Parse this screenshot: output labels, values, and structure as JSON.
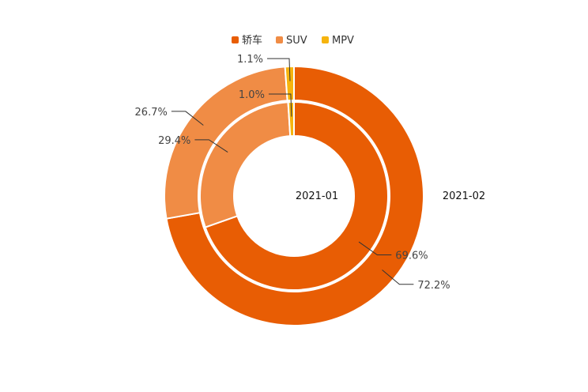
{
  "chart_data": {
    "type": "pie",
    "subtype": "nested-donut",
    "legend": [
      {
        "name": "轿车",
        "color": "#E85D04"
      },
      {
        "name": "SUV",
        "color": "#F08C45"
      },
      {
        "name": "MPV",
        "color": "#F6B40E"
      }
    ],
    "legend_position": "top-center",
    "categories": [
      "轿车",
      "SUV",
      "MPV"
    ],
    "series": [
      {
        "name": "2021-01",
        "ring": "inner",
        "values": [
          69.6,
          29.4,
          1.0
        ],
        "labels": [
          "69.6%",
          "29.4%",
          "1.0%"
        ]
      },
      {
        "name": "2021-02",
        "ring": "outer",
        "values": [
          72.2,
          26.7,
          1.1
        ],
        "labels": [
          "72.2%",
          "26.7%",
          "1.1%"
        ]
      }
    ]
  }
}
